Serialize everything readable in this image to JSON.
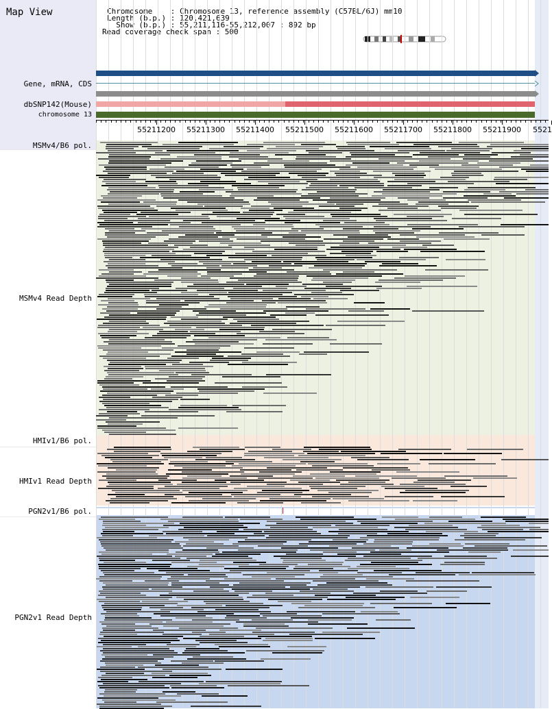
{
  "title": "Map View",
  "info": {
    "chromosome_line": "Chromosome    : Chromosome 13, reference assembly (C57BL/6J) mm10",
    "length_line": "Length (b.p.) : 120,421,639",
    "show_line": "  Show (b.p.) : 55,211,116-55,212,007 : 892 bp",
    "coverage_line": "Read coverage check span : 500"
  },
  "tracks": {
    "gene": "Gene, mRNA, CDS",
    "dbsnp": "dbSNP142(Mouse)",
    "chromosome": "chromosome 13",
    "msm_pol": "MSMv4/B6 pol.",
    "msm_depth": "MSMv4 Read Depth",
    "hmi_pol": "HMIv1/B6 pol.",
    "hmi_depth": "HMIv1 Read Depth",
    "pgn_pol": "PGN2v1/B6 pol.",
    "pgn_depth": "PGN2v1 Read Depth"
  },
  "axis": {
    "ticks": [
      "55211200",
      "55211300",
      "55211400",
      "55211500",
      "55211600",
      "55211700",
      "55211800",
      "55211900",
      "5521"
    ]
  },
  "colors": {
    "gene_bar": "#1f4e87",
    "mrna_line": "#4f8fa0",
    "cds_bar": "#8c8c8c",
    "dbsnp_light": "#f1a6a6",
    "dbsnp_dark": "#e0646e",
    "chromosome_bar": "#4a6a2b",
    "msm_bg": "#edf1e2",
    "hmi_bg": "#fbe8dc",
    "pgn_bg": "#c6d7ef"
  }
}
